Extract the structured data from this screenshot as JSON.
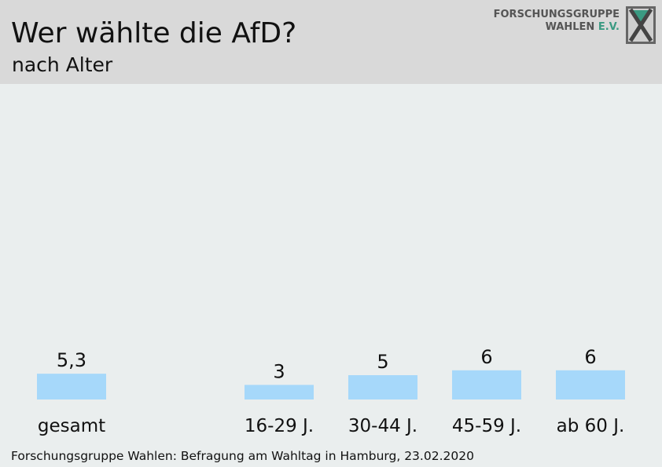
{
  "header": {
    "title": "Wer wählte die AfD?",
    "subtitle": "nach Alter"
  },
  "logo": {
    "line1": "FORSCHUNGSGRUPPE",
    "line2_a": "WAHLEN ",
    "line2_b": "E.V."
  },
  "footer": {
    "source": "Forschungsgruppe Wahlen: Befragung am Wahltag in Hamburg, 23.02.2020"
  },
  "chart_data": {
    "type": "bar",
    "title": "Wer wählte die AfD?",
    "subtitle": "nach Alter",
    "categories": [
      "gesamt",
      "16-29 J.",
      "30-44 J.",
      "45-59 J.",
      "ab 60 J."
    ],
    "values": [
      5.3,
      3,
      5,
      6,
      6
    ],
    "value_labels": [
      "5,3",
      "3",
      "5",
      "6",
      "6"
    ],
    "bar_color": "#a6d8fa",
    "ylim": [
      0,
      100
    ],
    "grid": false
  }
}
